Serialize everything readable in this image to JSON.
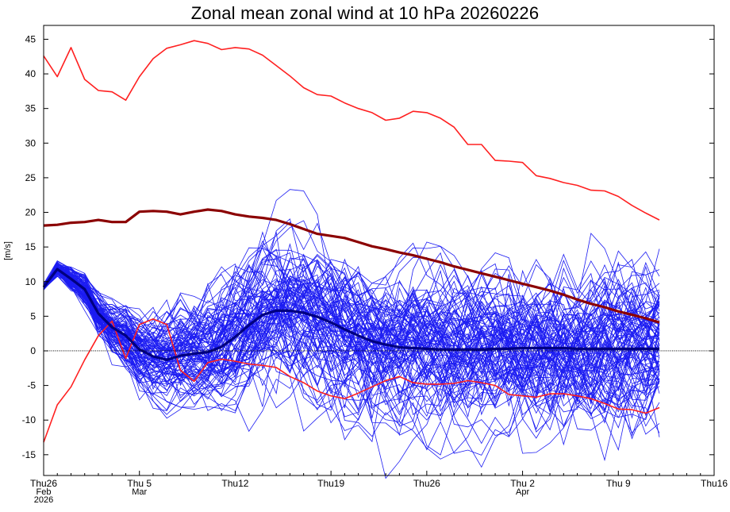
{
  "chart_data": {
    "type": "line",
    "title": "Zonal mean zonal wind at 10 hPa 20260226",
    "ylabel": "[m/s]",
    "xlabel": "",
    "ylim": [
      -18,
      47
    ],
    "xlim": [
      0,
      49
    ],
    "grid": false,
    "yticks": [
      -15,
      -10,
      -5,
      0,
      5,
      10,
      15,
      20,
      25,
      30,
      35,
      40,
      45
    ],
    "xticks": [
      {
        "day": 0,
        "lines": [
          "Thu26",
          "Feb",
          "2026"
        ]
      },
      {
        "day": 7,
        "lines": [
          "Thu 5",
          "Mar"
        ]
      },
      {
        "day": 14,
        "lines": [
          "Thu12"
        ]
      },
      {
        "day": 21,
        "lines": [
          "Thu19"
        ]
      },
      {
        "day": 28,
        "lines": [
          "Thu26"
        ]
      },
      {
        "day": 35,
        "lines": [
          "Thu 2",
          "Apr"
        ]
      },
      {
        "day": 42,
        "lines": [
          "Thu 9"
        ]
      },
      {
        "day": 49,
        "lines": [
          "Thu16"
        ]
      }
    ],
    "reference_line": {
      "y": 0,
      "style": "dotted",
      "color": "#000000"
    },
    "series": [
      {
        "role": "climatology_max",
        "color": "#ff2020",
        "width": 1.6,
        "x": [
          0,
          1,
          2,
          3,
          4,
          5,
          6,
          7,
          8,
          9,
          10,
          11,
          12,
          13,
          14,
          15,
          16,
          17,
          18,
          19,
          20,
          21,
          22,
          23,
          24,
          25,
          26,
          27,
          28,
          29,
          30,
          31,
          32,
          33,
          34,
          35,
          36,
          37,
          38,
          39,
          40,
          41,
          42,
          43,
          44,
          45
        ],
        "values": [
          42.6,
          39.6,
          43.8,
          39.2,
          37.6,
          37.4,
          36.2,
          39.6,
          42.2,
          43.7,
          44.2,
          44.8,
          44.4,
          43.5,
          43.8,
          43.6,
          42.7,
          41.2,
          39.7,
          38.0,
          37.0,
          36.8,
          35.8,
          35.0,
          34.4,
          33.3,
          33.6,
          34.6,
          34.4,
          33.6,
          32.3,
          29.8,
          29.8,
          27.5,
          27.4,
          27.2,
          25.3,
          24.9,
          24.3,
          23.9,
          23.2,
          23.1,
          22.3,
          21.0,
          19.9,
          18.9
        ]
      },
      {
        "role": "climatology_mean",
        "color": "#8b0000",
        "width": 3.2,
        "x": [
          0,
          1,
          2,
          3,
          4,
          5,
          6,
          7,
          8,
          9,
          10,
          11,
          12,
          13,
          14,
          15,
          16,
          17,
          18,
          19,
          20,
          21,
          22,
          23,
          24,
          25,
          26,
          27,
          28,
          29,
          30,
          31,
          32,
          33,
          34,
          35,
          36,
          37,
          38,
          39,
          40,
          41,
          42,
          43,
          44,
          45
        ],
        "values": [
          18.1,
          18.2,
          18.5,
          18.6,
          18.9,
          18.6,
          18.6,
          20.1,
          20.2,
          20.1,
          19.7,
          20.1,
          20.4,
          20.2,
          19.7,
          19.4,
          19.2,
          18.9,
          18.3,
          17.6,
          16.9,
          16.6,
          16.3,
          15.7,
          15.1,
          14.7,
          14.2,
          13.8,
          13.3,
          12.8,
          12.2,
          11.7,
          11.2,
          10.7,
          10.2,
          9.7,
          9.2,
          8.7,
          8.1,
          7.4,
          6.8,
          6.3,
          5.7,
          5.2,
          4.7,
          4.1
        ]
      },
      {
        "role": "climatology_min",
        "color": "#ff2020",
        "width": 1.6,
        "x": [
          0,
          1,
          2,
          3,
          4,
          5,
          6,
          7,
          8,
          9,
          10,
          11,
          12,
          13,
          14,
          15,
          16,
          17,
          18,
          19,
          20,
          21,
          22,
          23,
          24,
          25,
          26,
          27,
          28,
          29,
          30,
          31,
          32,
          33,
          34,
          35,
          36,
          37,
          38,
          39,
          40,
          41,
          42,
          43,
          44,
          45
        ],
        "values": [
          -13.2,
          -7.8,
          -5.2,
          -1.3,
          2.2,
          4.3,
          -1.1,
          3.8,
          4.6,
          3.8,
          -2.8,
          -4.4,
          -1.7,
          -1.2,
          -1.5,
          -1.9,
          -2.1,
          -2.4,
          -3.7,
          -4.6,
          -5.8,
          -6.5,
          -6.9,
          -6.1,
          -5.2,
          -4.3,
          -3.7,
          -4.6,
          -4.8,
          -4.8,
          -4.7,
          -4.3,
          -4.6,
          -5.0,
          -6.3,
          -6.5,
          -6.7,
          -6.2,
          -6.2,
          -6.5,
          -6.9,
          -7.6,
          -8.4,
          -8.5,
          -9.0,
          -8.2
        ]
      },
      {
        "role": "ensemble_mean",
        "color": "#000080",
        "width": 3.2,
        "x": [
          0,
          1,
          2,
          3,
          4,
          5,
          6,
          7,
          8,
          9,
          10,
          11,
          12,
          13,
          14,
          15,
          16,
          17,
          18,
          19,
          20,
          21,
          22,
          23,
          24,
          25,
          26,
          27,
          28,
          29,
          30,
          31,
          32,
          33,
          34,
          35,
          36,
          37,
          38,
          39,
          40,
          41,
          42,
          43,
          44,
          45
        ],
        "values": [
          9.2,
          11.8,
          10.4,
          8.9,
          5.4,
          3.4,
          2.2,
          0.2,
          -0.8,
          -1.3,
          -0.7,
          -0.4,
          -0.2,
          0.6,
          2.0,
          3.7,
          5.2,
          5.8,
          5.8,
          5.5,
          4.9,
          4.1,
          3.1,
          2.2,
          1.4,
          0.9,
          0.5,
          0.4,
          0.3,
          0.2,
          0.2,
          0.2,
          0.2,
          0.3,
          0.3,
          0.4,
          0.4,
          0.4,
          0.4,
          0.3,
          0.3,
          0.3,
          0.3,
          0.3,
          0.3,
          0.3
        ]
      }
    ],
    "ensemble": {
      "members": 100,
      "color": "#1c1cf2",
      "width": 0.8,
      "start_day": 0,
      "end_day": 45
    }
  }
}
